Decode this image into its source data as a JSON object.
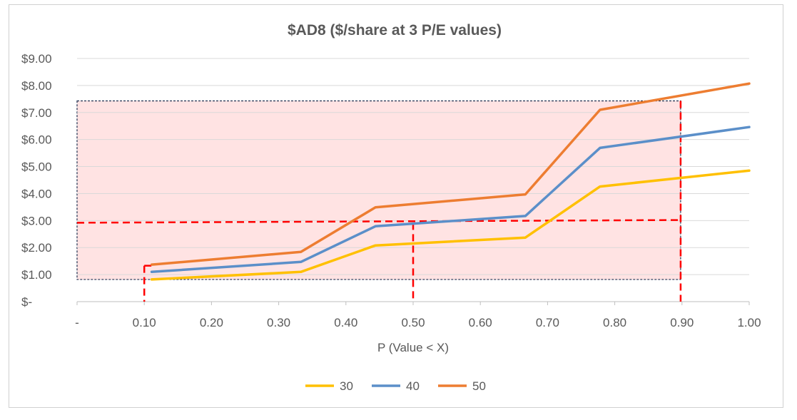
{
  "chart_data": {
    "type": "line",
    "title": "$AD8 ($/share at 3 P/E values)",
    "xlabel": "P (Value < X)",
    "ylabel": "",
    "xlim": [
      0,
      1
    ],
    "ylim": [
      0,
      9
    ],
    "x_ticks": [
      {
        "value": 0,
        "label": "-"
      },
      {
        "value": 0.1,
        "label": "0.10"
      },
      {
        "value": 0.2,
        "label": "0.20"
      },
      {
        "value": 0.3,
        "label": "0.30"
      },
      {
        "value": 0.4,
        "label": "0.40"
      },
      {
        "value": 0.5,
        "label": "0.50"
      },
      {
        "value": 0.6,
        "label": "0.60"
      },
      {
        "value": 0.7,
        "label": "0.70"
      },
      {
        "value": 0.8,
        "label": "0.80"
      },
      {
        "value": 0.9,
        "label": "0.90"
      },
      {
        "value": 1.0,
        "label": "1.00"
      }
    ],
    "y_ticks": [
      {
        "value": 0,
        "label": "$-"
      },
      {
        "value": 1,
        "label": "$1.00"
      },
      {
        "value": 2,
        "label": "$2.00"
      },
      {
        "value": 3,
        "label": "$3.00"
      },
      {
        "value": 4,
        "label": "$4.00"
      },
      {
        "value": 5,
        "label": "$5.00"
      },
      {
        "value": 6,
        "label": "$6.00"
      },
      {
        "value": 7,
        "label": "$7.00"
      },
      {
        "value": 8,
        "label": "$8.00"
      },
      {
        "value": 9,
        "label": "$9.00"
      }
    ],
    "grid": true,
    "legend_position": "bottom",
    "series": [
      {
        "name": "30",
        "color": "#FFC000",
        "points": [
          [
            0.111,
            0.82
          ],
          [
            0.333,
            1.1
          ],
          [
            0.444,
            2.08
          ],
          [
            0.667,
            2.37
          ],
          [
            0.778,
            4.26
          ],
          [
            1.0,
            4.85
          ]
        ]
      },
      {
        "name": "40",
        "color": "#5B8FC9",
        "points": [
          [
            0.111,
            1.1
          ],
          [
            0.333,
            1.47
          ],
          [
            0.444,
            2.79
          ],
          [
            0.667,
            3.17
          ],
          [
            0.778,
            5.69
          ],
          [
            1.0,
            6.46
          ]
        ]
      },
      {
        "name": "50",
        "color": "#ED7D31",
        "points": [
          [
            0.111,
            1.37
          ],
          [
            0.333,
            1.84
          ],
          [
            0.444,
            3.49
          ],
          [
            0.667,
            3.97
          ],
          [
            0.778,
            7.1
          ],
          [
            1.0,
            8.07
          ]
        ]
      }
    ],
    "annotations": {
      "shaded_box": {
        "x": [
          0.0,
          0.898
        ],
        "y": [
          0.82,
          7.43
        ],
        "fill": "#FFE3E3",
        "border": "#203050"
      },
      "dashed_lines": [
        {
          "x1": 0.0,
          "y1": 2.92,
          "x2": 0.898,
          "y2": 3.02
        },
        {
          "x1": 0.1,
          "y1": 1.33,
          "x2": 0.1,
          "y2": 0
        },
        {
          "x1": 0.1,
          "y1": 1.33,
          "x2": 0.111,
          "y2": 1.33
        },
        {
          "x1": 0.5,
          "y1": 2.92,
          "x2": 0.5,
          "y2": 0
        },
        {
          "x1": 0.898,
          "y1": 7.43,
          "x2": 0.898,
          "y2": 0
        }
      ],
      "dash_color": "#FF0000"
    }
  }
}
